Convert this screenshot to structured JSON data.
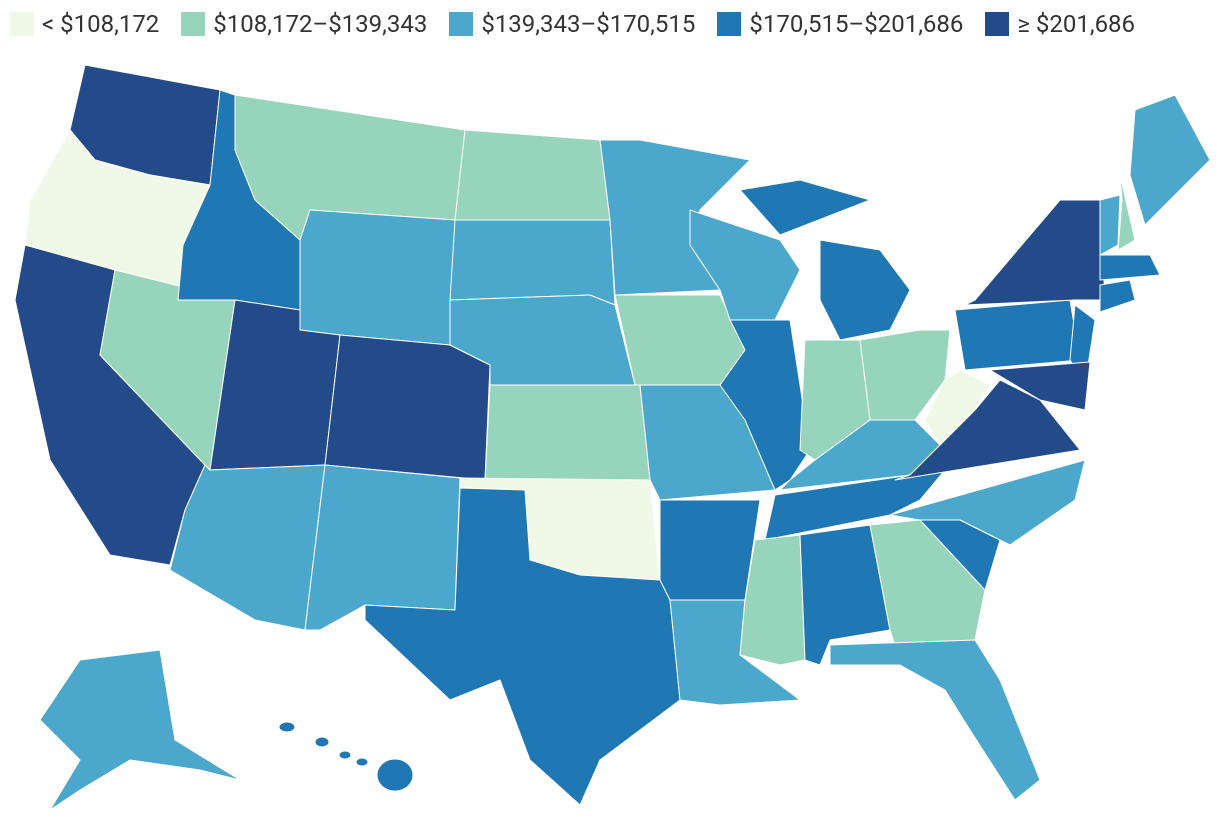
{
  "legend": {
    "items": [
      {
        "label": "< $108,172",
        "color": "#f0f9e8"
      },
      {
        "label": "$108,172–$139,343",
        "color": "#97d4bc"
      },
      {
        "label": "$139,343–$170,515",
        "color": "#4ba7cb"
      },
      {
        "label": "$170,515–$201,686",
        "color": "#1f77b4"
      },
      {
        "label": "≥ $201,686",
        "color": "#234b8a"
      }
    ]
  }
}
